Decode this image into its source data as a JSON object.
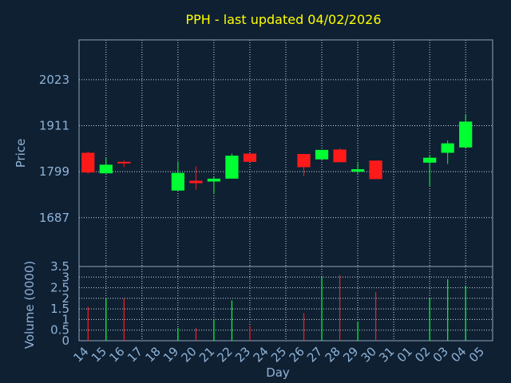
{
  "chart_data": {
    "type": "candlestick",
    "title": "PPH - last updated 04/02/2026",
    "ylabel": "Price",
    "volume_label": "Volume (0000)",
    "xlabel": "Day",
    "price_ticks": [
      "2023",
      "1911",
      "1799",
      "1687"
    ],
    "price_tick_values": [
      2023,
      1911,
      1799,
      1687
    ],
    "ylim": [
      1568,
      2120
    ],
    "volume_ticks": [
      "3.5",
      "3",
      "2.5",
      "2",
      "1.5",
      "1",
      "0.5",
      "0"
    ],
    "volume_tick_values": [
      3.5,
      3,
      2.5,
      2,
      1.5,
      1,
      0.5,
      0
    ],
    "volume_ylim": [
      0,
      3.5
    ],
    "x_labels": [
      "14",
      "15",
      "16",
      "17",
      "18",
      "19",
      "20",
      "21",
      "22",
      "23",
      "24",
      "25",
      "26",
      "27",
      "28",
      "29",
      "30",
      "31",
      "01",
      "02",
      "03",
      "04",
      "05"
    ],
    "up_color": "#00ff33",
    "down_color": "#ff1a1a",
    "grid_color": "#d0d8e0",
    "candles": [
      {
        "day": "14",
        "open": 1845,
        "close": 1797,
        "high": 1848,
        "low": 1794,
        "volume": 1.6
      },
      {
        "day": "15",
        "open": 1795,
        "close": 1816,
        "high": 1833,
        "low": 1795,
        "volume": 2.0
      },
      {
        "day": "16",
        "open": 1823,
        "close": 1820,
        "high": 1826,
        "low": 1810,
        "volume": 2.0
      },
      {
        "day": "19",
        "open": 1753,
        "close": 1796,
        "high": 1824,
        "low": 1753,
        "volume": 0.6
      },
      {
        "day": "20",
        "open": 1777,
        "close": 1771,
        "high": 1812,
        "low": 1755,
        "volume": 0.6
      },
      {
        "day": "21",
        "open": 1775,
        "close": 1782,
        "high": 1786,
        "low": 1746,
        "volume": 1.0
      },
      {
        "day": "22",
        "open": 1782,
        "close": 1838,
        "high": 1843,
        "low": 1782,
        "volume": 1.9
      },
      {
        "day": "23",
        "open": 1843,
        "close": 1823,
        "high": 1843,
        "low": 1823,
        "volume": 0.7
      },
      {
        "day": "26",
        "open": 1842,
        "close": 1810,
        "high": 1842,
        "low": 1788,
        "volume": 1.3
      },
      {
        "day": "27",
        "open": 1829,
        "close": 1852,
        "high": 1852,
        "low": 1829,
        "volume": 3.0
      },
      {
        "day": "28",
        "open": 1853,
        "close": 1822,
        "high": 1856,
        "low": 1822,
        "volume": 3.1
      },
      {
        "day": "29",
        "open": 1799,
        "close": 1805,
        "high": 1820,
        "low": 1794,
        "volume": 0.9
      },
      {
        "day": "30",
        "open": 1826,
        "close": 1781,
        "high": 1826,
        "low": 1781,
        "volume": 2.3
      },
      {
        "day": "02",
        "open": 1821,
        "close": 1833,
        "high": 1840,
        "low": 1763,
        "volume": 2.0
      },
      {
        "day": "03",
        "open": 1845,
        "close": 1868,
        "high": 1875,
        "low": 1818,
        "volume": 2.9
      },
      {
        "day": "04",
        "open": 1858,
        "close": 1921,
        "high": 1938,
        "low": 1858,
        "volume": 2.6
      }
    ]
  }
}
